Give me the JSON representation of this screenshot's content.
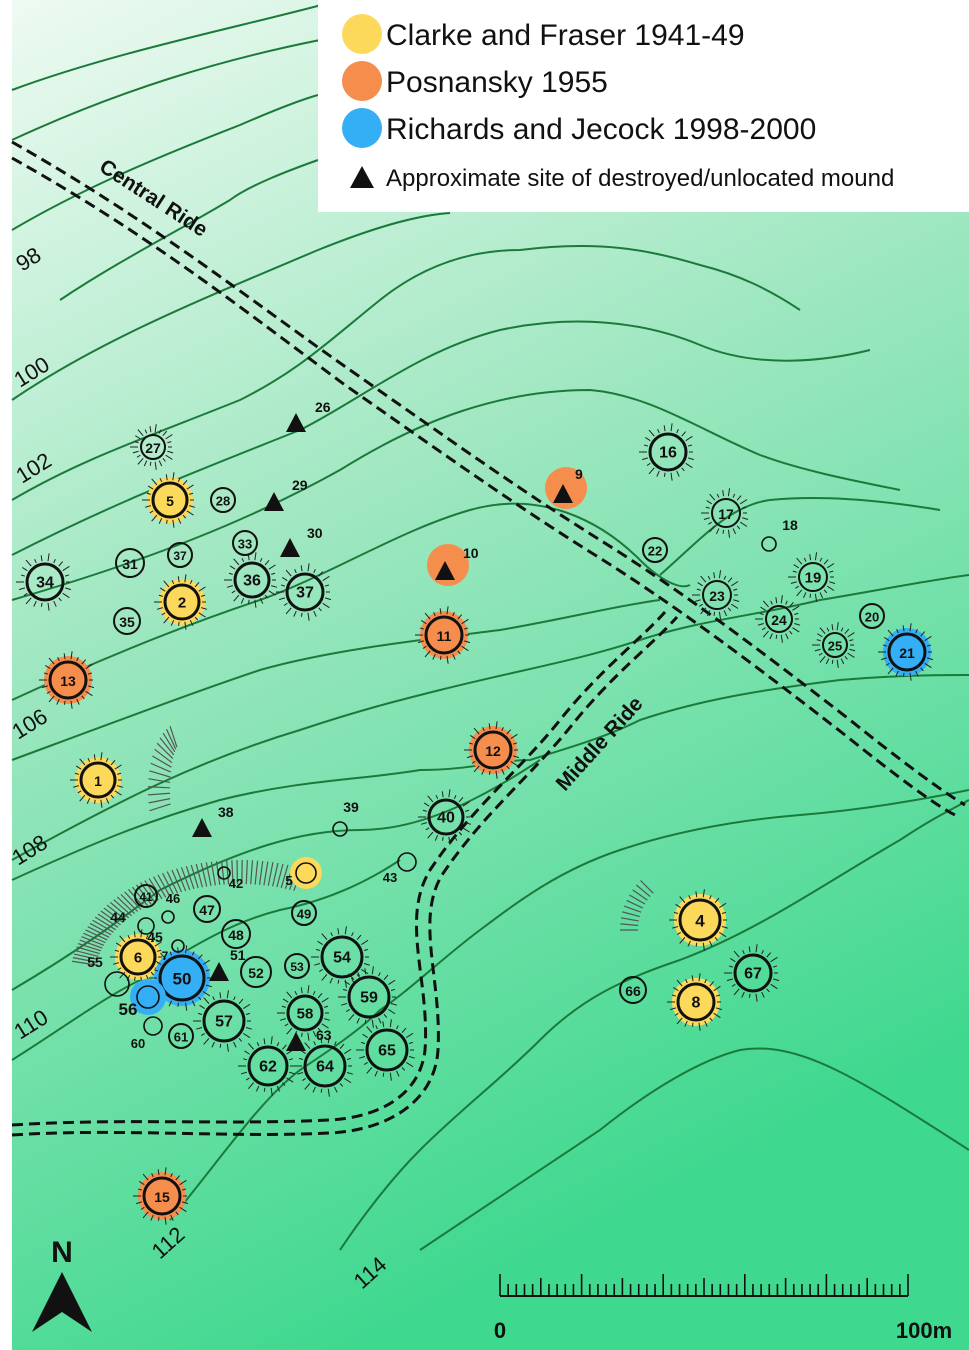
{
  "legend": {
    "items": [
      {
        "label": "Clarke and Fraser 1941-49",
        "color": "#fcd95b",
        "kind": "circle"
      },
      {
        "label": "Posnansky 1955",
        "color": "#f58d4d",
        "kind": "circle"
      },
      {
        "label": "Richards and Jecock 1998-2000",
        "color": "#34aef5",
        "kind": "circle"
      },
      {
        "label": "Approximate site of destroyed/unlocated mound",
        "color": "#111111",
        "kind": "triangle"
      }
    ]
  },
  "rides": {
    "central": "Central Ride",
    "middle": "Middle Ride"
  },
  "contours": [
    "98",
    "100",
    "102",
    "106",
    "108",
    "110",
    "112",
    "114"
  ],
  "north_arrow": {
    "label": "N"
  },
  "scale_bar": {
    "start": "0",
    "end": "100m"
  },
  "colors": {
    "clarke": "#fcd95b",
    "posnansky": "#f58d4d",
    "richards": "#34aef5",
    "magenta": "#d4207a"
  },
  "mounds": [
    {
      "id": "27"
    },
    {
      "id": "5"
    },
    {
      "id": "28"
    },
    {
      "id": "31"
    },
    {
      "id": "37"
    },
    {
      "id": "33"
    },
    {
      "id": "34"
    },
    {
      "id": "36"
    },
    {
      "id": "37"
    },
    {
      "id": "35"
    },
    {
      "id": "2"
    },
    {
      "id": "13"
    },
    {
      "id": "11"
    },
    {
      "id": "16"
    },
    {
      "id": "17"
    },
    {
      "id": "22"
    },
    {
      "id": "19"
    },
    {
      "id": "23"
    },
    {
      "id": "24"
    },
    {
      "id": "20"
    },
    {
      "id": "25"
    },
    {
      "id": "21"
    },
    {
      "id": "12"
    },
    {
      "id": "1"
    },
    {
      "id": "40"
    },
    {
      "id": "4"
    },
    {
      "id": "67"
    },
    {
      "id": "66"
    },
    {
      "id": "8"
    },
    {
      "id": "41"
    },
    {
      "id": "47"
    },
    {
      "id": "49"
    },
    {
      "id": "48"
    },
    {
      "id": "54"
    },
    {
      "id": "6"
    },
    {
      "id": "50"
    },
    {
      "id": "52"
    },
    {
      "id": "53"
    },
    {
      "id": "59"
    },
    {
      "id": "57"
    },
    {
      "id": "58"
    },
    {
      "id": "61"
    },
    {
      "id": "62"
    },
    {
      "id": "64"
    },
    {
      "id": "65"
    },
    {
      "id": "15"
    }
  ],
  "outside_labels": [
    "18",
    "39",
    "42",
    "43",
    "5",
    "46",
    "44",
    "45",
    "7",
    "55",
    "56",
    "60"
  ],
  "triangles": [
    "26",
    "29",
    "30",
    "9",
    "10",
    "38",
    "51",
    "63"
  ]
}
